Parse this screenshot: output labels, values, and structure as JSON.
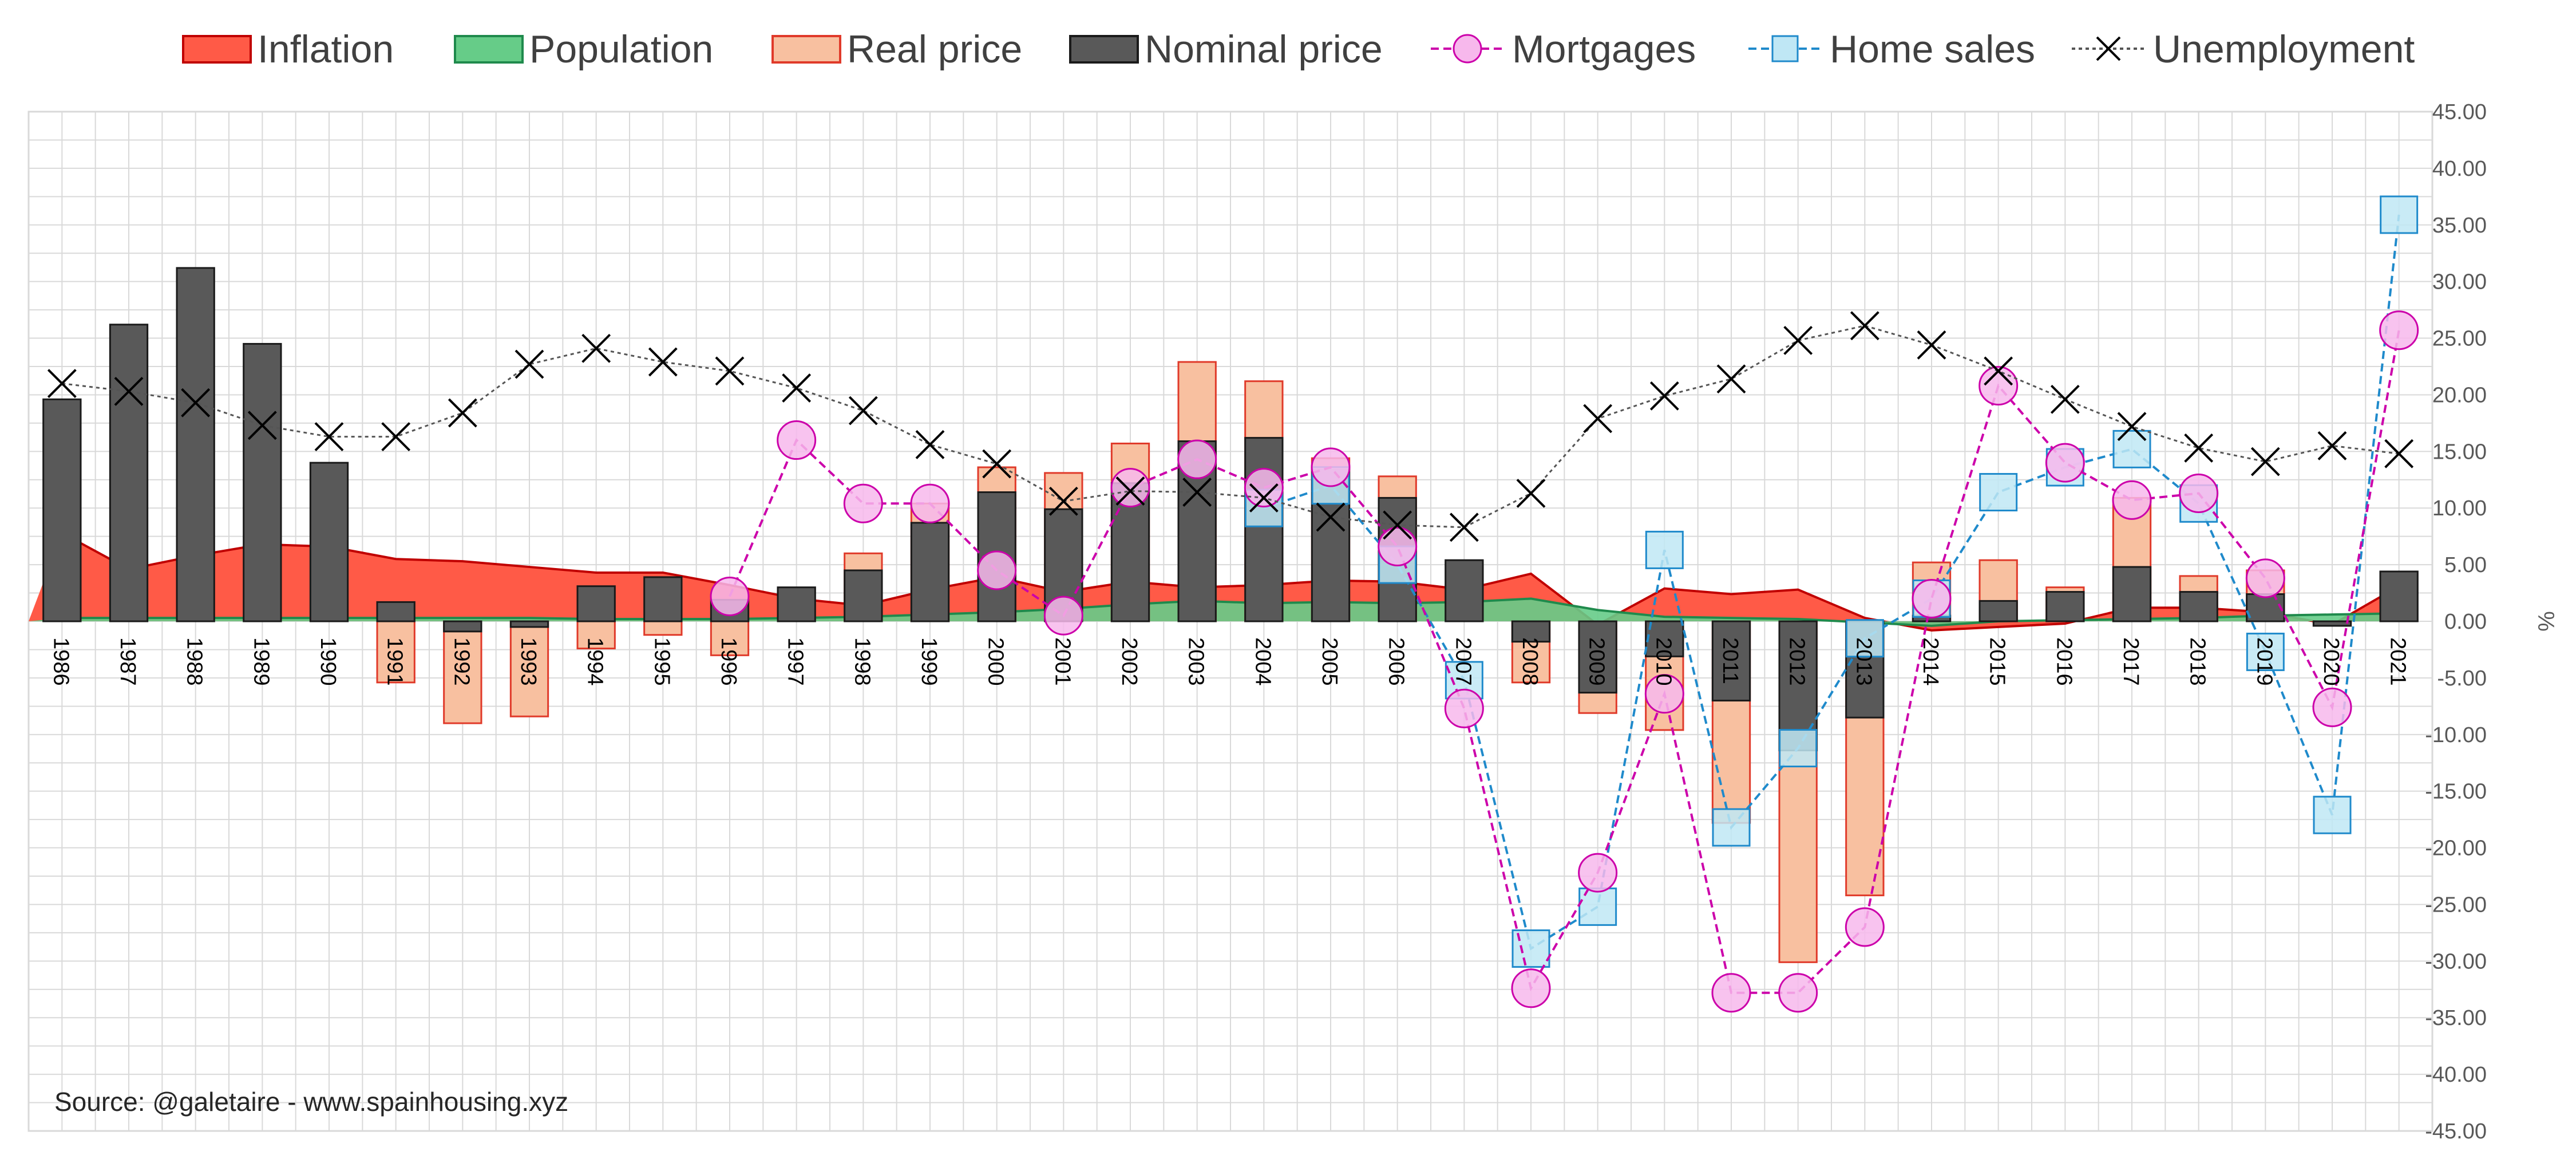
{
  "chart_data": {
    "type": "bar",
    "y_unit_label": "%",
    "ylim": [
      -45,
      45
    ],
    "ytick_step": 5,
    "yticks": [
      "45.00",
      "40.00",
      "35.00",
      "30.00",
      "25.00",
      "20.00",
      "15.00",
      "10.00",
      "5.00",
      "0.00",
      "-5.00",
      "-10.00",
      "-15.00",
      "-20.00",
      "-25.00",
      "-30.00",
      "-35.00",
      "-40.00",
      "-45.00"
    ],
    "grid": true,
    "legend_position": "top",
    "categories": [
      "1986",
      "1987",
      "1988",
      "1989",
      "1990",
      "1991",
      "1992",
      "1993",
      "1994",
      "1995",
      "1996",
      "1997",
      "1998",
      "1999",
      "2000",
      "2001",
      "2002",
      "2003",
      "2004",
      "2005",
      "2006",
      "2007",
      "2008",
      "2009",
      "2010",
      "2011",
      "2012",
      "2013",
      "2014",
      "2015",
      "2016",
      "2017",
      "2018",
      "2019",
      "2020",
      "2021"
    ],
    "series": [
      {
        "name": "Inflation",
        "kind": "area",
        "color": "#ff5a47",
        "stroke": "#c00000",
        "values": [
          7.8,
          4.6,
          5.8,
          6.8,
          6.6,
          5.5,
          5.3,
          4.8,
          4.3,
          4.3,
          3.2,
          2.0,
          1.4,
          2.8,
          3.9,
          2.6,
          3.5,
          3.0,
          3.2,
          3.6,
          3.5,
          2.8,
          4.2,
          -0.3,
          2.9,
          2.4,
          2.8,
          0.3,
          -0.8,
          -0.5,
          -0.2,
          1.2,
          1.2,
          0.8,
          -0.3,
          3.1
        ]
      },
      {
        "name": "Population",
        "kind": "area",
        "color": "#66cc88",
        "stroke": "#1f8a4c",
        "values": [
          0.3,
          0.3,
          0.3,
          0.3,
          0.3,
          0.3,
          0.3,
          0.3,
          0.2,
          0.2,
          0.2,
          0.3,
          0.4,
          0.6,
          0.8,
          1.1,
          1.5,
          1.8,
          1.6,
          1.7,
          1.6,
          1.7,
          2.0,
          1.0,
          0.4,
          0.3,
          0.2,
          -0.1,
          -0.4,
          0.0,
          0.1,
          0.2,
          0.3,
          0.5,
          0.6,
          0.7
        ]
      },
      {
        "name": "Real price",
        "kind": "bar",
        "color": "#f8c0a0",
        "stroke": "#e03a2a",
        "values": [
          null,
          null,
          null,
          null,
          null,
          -5.4,
          -9.0,
          -8.4,
          -2.4,
          -1.2,
          -3.0,
          null,
          6.0,
          10.4,
          13.6,
          13.1,
          15.7,
          22.9,
          21.2,
          14.4,
          12.8,
          null,
          -5.4,
          -8.1,
          -9.6,
          -17.8,
          -30.1,
          -24.2,
          5.2,
          5.4,
          3.0,
          10.9,
          4.0,
          4.5,
          -0.1,
          null
        ]
      },
      {
        "name": "Nominal price",
        "kind": "bar",
        "color": "#595959",
        "stroke": "#1a1a1a",
        "values": [
          19.6,
          26.2,
          31.2,
          24.5,
          14.0,
          1.7,
          -0.9,
          -0.5,
          3.1,
          3.9,
          1.9,
          3.0,
          4.5,
          8.7,
          11.4,
          9.9,
          12.2,
          15.9,
          16.2,
          13.4,
          10.9,
          5.4,
          -1.8,
          -6.3,
          -3.1,
          -7.0,
          -11.4,
          -8.5,
          0.5,
          1.8,
          2.6,
          4.8,
          2.6,
          2.4,
          -0.4,
          4.4
        ]
      },
      {
        "name": "Mortgages",
        "kind": "line",
        "color": "#cc00aa",
        "fill": "#f7b8ec",
        "values": [
          null,
          null,
          null,
          null,
          null,
          null,
          null,
          null,
          null,
          null,
          2.2,
          16.0,
          10.4,
          10.4,
          4.5,
          0.5,
          11.8,
          14.3,
          11.8,
          13.6,
          6.6,
          -7.7,
          -32.4,
          -22.2,
          -6.4,
          -32.8,
          -32.8,
          -27.0,
          2.0,
          20.8,
          14.0,
          10.7,
          11.3,
          3.8,
          -7.6,
          25.7
        ]
      },
      {
        "name": "Home sales",
        "kind": "line",
        "color": "#1f8acb",
        "fill": "#bfe7f5",
        "values": [
          null,
          null,
          null,
          null,
          null,
          null,
          null,
          null,
          null,
          null,
          null,
          null,
          null,
          null,
          null,
          null,
          null,
          null,
          10.0,
          12.0,
          5.0,
          -5.2,
          -28.9,
          -25.2,
          6.3,
          -18.2,
          -11.2,
          -1.5,
          2.0,
          11.4,
          13.6,
          15.2,
          10.4,
          -2.7,
          -17.1,
          35.9
        ]
      },
      {
        "name": "Unemployment",
        "kind": "line",
        "color": "#555555",
        "marker": "x",
        "values": [
          21.0,
          20.3,
          19.3,
          17.3,
          16.3,
          16.3,
          18.4,
          22.7,
          24.1,
          22.9,
          22.1,
          20.6,
          18.6,
          15.6,
          13.9,
          10.6,
          11.5,
          11.4,
          10.9,
          9.2,
          8.5,
          8.3,
          11.3,
          17.9,
          19.9,
          21.4,
          24.8,
          26.1,
          24.4,
          22.1,
          19.6,
          17.2,
          15.3,
          14.1,
          15.5,
          14.8
        ]
      }
    ]
  },
  "source_note": "Source: @galetaire - www.spainhousing.xyz"
}
